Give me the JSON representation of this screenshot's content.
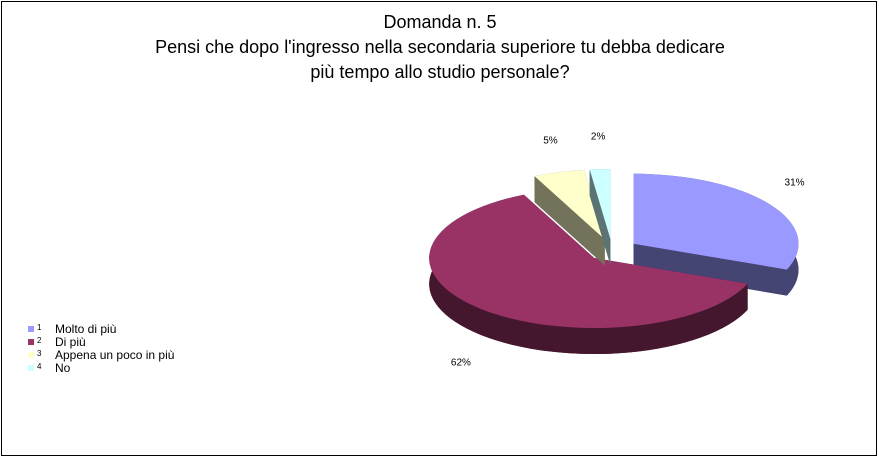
{
  "chart_data": {
    "type": "pie3d",
    "title": "Domanda n. 5",
    "subtitle": [
      "Pensi che dopo l'ingresso nella secondaria superiore tu debba dedicare",
      "più tempo allo studio personale?"
    ],
    "categories": [
      "1",
      "2",
      "3",
      "4"
    ],
    "labels": [
      "Molto di più",
      "Di più",
      "Appena un poco in più",
      "No"
    ],
    "values": [
      31,
      62,
      5,
      2
    ],
    "value_labels": [
      "31%",
      "62%",
      "5%",
      "2%"
    ],
    "colors": [
      "#9999ff",
      "#993366",
      "#ffffcc",
      "#ccffff"
    ],
    "legend": "left"
  }
}
